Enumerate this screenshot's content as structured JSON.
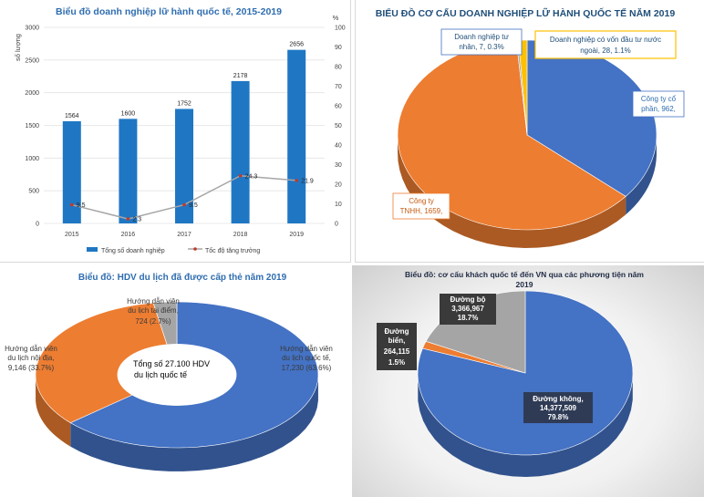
{
  "chart_data": [
    {
      "type": "bar",
      "title": "Biểu đồ doanh nghiệp lữ hành quốc tế, 2015-2019",
      "ylabel": "số lượng",
      "y2label": "%",
      "categories": [
        "2015",
        "2016",
        "2017",
        "2018",
        "2019"
      ],
      "ylim": [
        0,
        3000
      ],
      "y2lim": [
        0,
        100
      ],
      "yticks": [
        "0",
        "500",
        "1000",
        "1500",
        "2000",
        "2500",
        "3000"
      ],
      "y2ticks": [
        "0",
        "10",
        "20",
        "30",
        "40",
        "50",
        "60",
        "70",
        "80",
        "90",
        "100"
      ],
      "series": [
        {
          "name": "Tổng số doanh nghiệp",
          "type": "bar",
          "values": [
            1564,
            1600,
            1752,
            2178,
            2656
          ],
          "labels": [
            "1564",
            "1600",
            "1752",
            "2178",
            "2656"
          ],
          "color": "#1f77c4"
        },
        {
          "name": "Tốc độ tăng trưởng",
          "type": "line",
          "axis": "right",
          "values": [
            9.5,
            2.3,
            9.5,
            24.3,
            21.9
          ],
          "labels": [
            "9.5",
            "2.3",
            "9.5",
            "24.3",
            "21.9"
          ],
          "color": "#a6a6a6",
          "marker_color": "#c0392b"
        }
      ],
      "legend": "bottom"
    },
    {
      "type": "pie",
      "title": "BIỂU ĐỒ CƠ CẤU DOANH NGHIỆP LỮ HÀNH QUỐC TẾ NĂM 2019",
      "slices": [
        {
          "name": "Công ty cổ phần",
          "value": 962,
          "label": [
            "Công ty cổ",
            "phần, 962,"
          ],
          "color": "#4472c4"
        },
        {
          "name": "Công ty TNHH",
          "value": 1659,
          "label": [
            "Công ty",
            "TNHH, 1659,"
          ],
          "color": "#ed7d31"
        },
        {
          "name": "Doanh nghiệp tư nhân",
          "value": 7,
          "label": [
            "Doanh nghiệp tư",
            "nhân, 7, 0.3%"
          ],
          "color": "#a5a5a5"
        },
        {
          "name": "Doanh nghiệp có vốn đầu tư nước ngoài",
          "value": 28,
          "label": [
            "Doanh nghiệp có vốn đầu tư nước",
            "ngoài, 28, 1.1%"
          ],
          "color": "#ffc000"
        }
      ]
    },
    {
      "type": "pie",
      "title": "Biểu đồ: HDV du lịch đã được cấp thẻ năm 2019",
      "center_text": [
        "Tổng số 27.100 HDV",
        "du lịch quốc tế"
      ],
      "slices": [
        {
          "name": "Hướng dẫn viên du lịch quốc tế",
          "value": 17230,
          "label": [
            "Hướng dẫn viên",
            "du lịch quốc tế,",
            "17,230 (63.6%)"
          ],
          "color": "#4472c4"
        },
        {
          "name": "Hướng dẫn viên du lịch nội địa",
          "value": 9146,
          "label": [
            "Hướng dẫn viên",
            "du lịch nội địa,",
            "9,146 (33.7%)"
          ],
          "color": "#ed7d31"
        },
        {
          "name": "Hướng dẫn viên du lịch tại điểm",
          "value": 724,
          "label": [
            "Hướng dẫn viên",
            "du lịch tại điểm,",
            "724  (2.7%)"
          ],
          "color": "#a5a5a5"
        }
      ]
    },
    {
      "type": "pie",
      "title": [
        "Biểu đồ: cơ cấu khách quốc tế đến VN qua các phương tiện năm",
        "2019"
      ],
      "slices": [
        {
          "name": "Đường không",
          "value": 14377509,
          "label": [
            "Đường không,",
            "14,377,509",
            "79.8%"
          ],
          "color": "#4472c4"
        },
        {
          "name": "Đường biển",
          "value": 264115,
          "label": [
            "Đường",
            "biển,",
            "264,115",
            "1.5%"
          ],
          "color": "#ed7d31"
        },
        {
          "name": "Đường bộ",
          "value": 3366967,
          "label": [
            "Đường bộ",
            "3,366,967",
            "18.7%"
          ],
          "color": "#a5a5a5"
        }
      ]
    }
  ]
}
